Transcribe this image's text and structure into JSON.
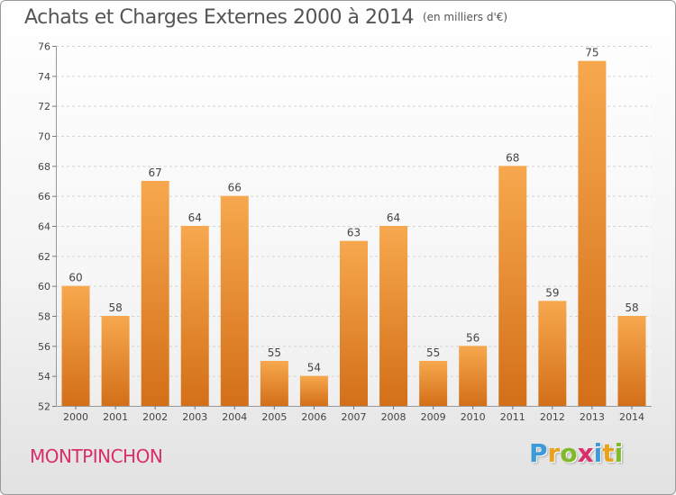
{
  "header": {
    "title": "Achats et Charges Externes 2000 à 2014",
    "unit": "(en milliers d'€)"
  },
  "footer": {
    "commune": "MONTPINCHON",
    "logo": "Proxiti"
  },
  "colors": {
    "bar_light": "#f7a84e",
    "bar_dark": "#d36f18",
    "title": "#555555",
    "commune": "#d92e6b",
    "logo": [
      "#3a9bd8",
      "#e8a21c",
      "#7fba29",
      "#d92e6b",
      "#3a9bd8",
      "#e8a21c",
      "#7fba29"
    ]
  },
  "chart_data": {
    "type": "bar",
    "title": "Achats et Charges Externes 2000 à 2014",
    "subtitle": "(en milliers d'€)",
    "categories": [
      "2000",
      "2001",
      "2002",
      "2003",
      "2004",
      "2005",
      "2006",
      "2007",
      "2008",
      "2009",
      "2010",
      "2011",
      "2012",
      "2013",
      "2014"
    ],
    "values": [
      60,
      58,
      67,
      64,
      66,
      55,
      54,
      63,
      64,
      55,
      56,
      68,
      59,
      75,
      58
    ],
    "ylim": [
      52,
      76
    ],
    "yticks": [
      52,
      54,
      56,
      58,
      60,
      62,
      64,
      66,
      68,
      70,
      72,
      74,
      76
    ],
    "grid": true,
    "data_labels": true
  }
}
